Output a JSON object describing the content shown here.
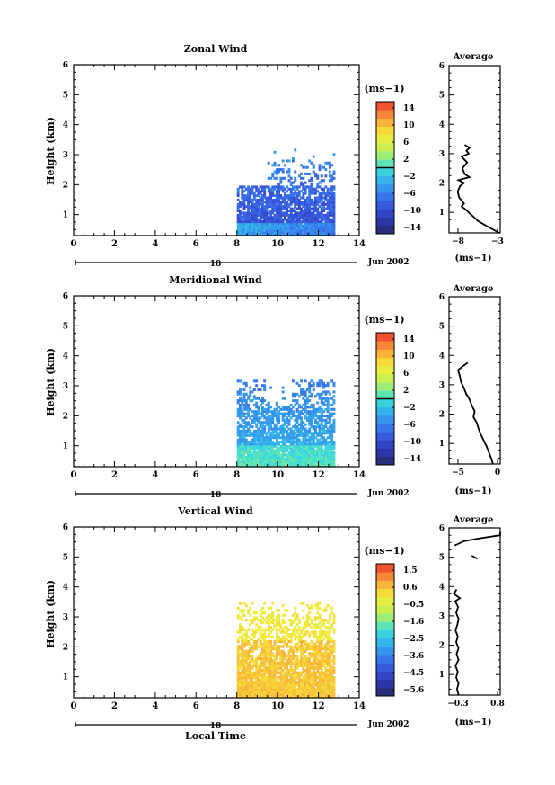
{
  "x_axis_label": "Local Time",
  "panels": [
    {
      "title": "Zonal Wind",
      "ylabel": "Height (km)",
      "date_label": "18",
      "month_label": "Jun 2002",
      "colorbar": {
        "unit": "(ms−1)",
        "ticks": [
          "14",
          "10",
          "6",
          "2",
          "−2",
          "−6",
          "−10",
          "−14"
        ]
      },
      "average": {
        "title": "Average",
        "unit": "(ms−1)",
        "xticks": [
          "−8",
          "−3"
        ]
      }
    },
    {
      "title": "Meridional Wind",
      "ylabel": "Height (km)",
      "date_label": "18",
      "month_label": "Jun 2002",
      "colorbar": {
        "unit": "(ms−1)",
        "ticks": [
          "14",
          "10",
          "6",
          "2",
          "−2",
          "−6",
          "−10",
          "−14"
        ]
      },
      "average": {
        "title": "Average",
        "unit": "(ms−1)",
        "xticks": [
          "−5",
          "0"
        ]
      }
    },
    {
      "title": "Vertical Wind",
      "ylabel": "Height (km)",
      "date_label": "18",
      "month_label": "Jun 2002",
      "colorbar": {
        "unit": "(ms−1)",
        "ticks": [
          "1.5",
          "0.6",
          "−0.5",
          "−1.6",
          "−2.5",
          "−3.6",
          "−4.5",
          "−5.6"
        ]
      },
      "average": {
        "title": "Average",
        "unit": "(ms−1)",
        "xticks": [
          "−0.3",
          "0.8"
        ]
      }
    }
  ],
  "chart_data": [
    {
      "type": "heatmap",
      "title": "Zonal Wind",
      "ylabel": "Height (km)",
      "xlabel": "",
      "xlim": [
        0,
        14
      ],
      "ylim": [
        0.3,
        6
      ],
      "xticks": [
        0,
        2,
        4,
        6,
        8,
        10,
        12,
        14
      ],
      "yticks": [
        1,
        2,
        3,
        4,
        5,
        6
      ],
      "data_extent": {
        "x": [
          8,
          12.8
        ],
        "y": [
          0.3,
          3.2
        ]
      },
      "colorbar_range": [
        -16,
        16
      ],
      "average_profile": {
        "xlim": [
          -9.5,
          -3
        ],
        "height": [
          0.3,
          0.5,
          0.7,
          0.9,
          1.0,
          1.1,
          1.2,
          1.3,
          1.5,
          1.7,
          1.9,
          2.0,
          2.1,
          2.2,
          2.3,
          2.5,
          2.7,
          2.9,
          3.0,
          3.1,
          3.2,
          3.3
        ],
        "value": [
          -3.1,
          -4.5,
          -5.8,
          -6.6,
          -7.0,
          -7.4,
          -7.9,
          -7.6,
          -8.2,
          -8.4,
          -8.1,
          -7.6,
          -8.3,
          -6.9,
          -7.5,
          -7.8,
          -7.2,
          -7.9,
          -7.0,
          -7.3,
          -6.9,
          -7.5
        ]
      }
    },
    {
      "type": "heatmap",
      "title": "Meridional Wind",
      "ylabel": "Height (km)",
      "xlabel": "",
      "xlim": [
        0,
        14
      ],
      "ylim": [
        0.3,
        6
      ],
      "xticks": [
        0,
        2,
        4,
        6,
        8,
        10,
        12,
        14
      ],
      "yticks": [
        1,
        2,
        3,
        4,
        5,
        6
      ],
      "data_extent": {
        "x": [
          8,
          12.8
        ],
        "y": [
          0.3,
          3.2
        ]
      },
      "colorbar_range": [
        -16,
        16
      ],
      "average_profile": {
        "xlim": [
          -7.5,
          1.5
        ],
        "height": [
          0.3,
          0.5,
          0.7,
          0.9,
          1.1,
          1.3,
          1.5,
          1.7,
          1.9,
          2.1,
          2.3,
          2.5,
          2.7,
          2.9,
          3.1,
          3.3,
          3.5,
          3.6,
          3.7,
          3.75
        ],
        "value": [
          0.2,
          -0.1,
          -0.5,
          -0.9,
          -1.4,
          -1.9,
          -2.3,
          -2.6,
          -3.2,
          -3.0,
          -3.5,
          -3.9,
          -4.5,
          -4.9,
          -5.4,
          -5.6,
          -5.9,
          -5.3,
          -4.6,
          -4.2
        ]
      }
    },
    {
      "type": "heatmap",
      "title": "Vertical Wind",
      "ylabel": "Height (km)",
      "xlabel": "Local Time",
      "xlim": [
        0,
        14
      ],
      "ylim": [
        0.3,
        6
      ],
      "xticks": [
        0,
        2,
        4,
        6,
        8,
        10,
        12,
        14
      ],
      "yticks": [
        1,
        2,
        3,
        4,
        5,
        6
      ],
      "data_extent": {
        "x": [
          8,
          12.8
        ],
        "y": [
          0.3,
          3.5
        ]
      },
      "colorbar_range": [
        -6,
        2
      ],
      "average_profile": {
        "xlim": [
          -0.55,
          0.8
        ],
        "height": [
          0.3,
          0.5,
          0.7,
          0.9,
          1.1,
          1.3,
          1.5,
          1.7,
          1.9,
          2.1,
          2.3,
          2.5,
          2.7,
          2.9,
          3.1,
          3.3,
          3.5,
          3.6,
          3.75,
          3.9
        ],
        "value": [
          -0.3,
          -0.34,
          -0.3,
          -0.36,
          -0.32,
          -0.38,
          -0.3,
          -0.35,
          -0.3,
          -0.36,
          -0.32,
          -0.38,
          -0.33,
          -0.3,
          -0.36,
          -0.31,
          -0.39,
          -0.26,
          -0.42,
          -0.35
        ],
        "upper_segment": {
          "height": [
            5.4,
            5.55,
            5.65,
            5.75,
            5.85
          ],
          "value": [
            -0.4,
            -0.15,
            0.3,
            0.8,
            0.8
          ]
        }
      }
    }
  ]
}
